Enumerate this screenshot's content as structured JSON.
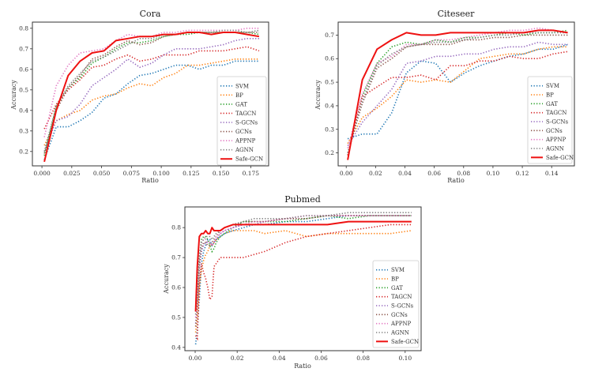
{
  "series_styles": [
    {
      "name": "SVM",
      "color": "#1f77b4",
      "style": "dotted"
    },
    {
      "name": "BP",
      "color": "#ff7f0e",
      "style": "dotted"
    },
    {
      "name": "GAT",
      "color": "#2ca02c",
      "style": "dotted"
    },
    {
      "name": "TAGCN",
      "color": "#d62728",
      "style": "dotted"
    },
    {
      "name": "S-GCNs",
      "color": "#9467bd",
      "style": "dotted"
    },
    {
      "name": "GCNs",
      "color": "#8c564b",
      "style": "dotted"
    },
    {
      "name": "APPNP",
      "color": "#e377c2",
      "style": "dotted"
    },
    {
      "name": "AGNN",
      "color": "#7f7f7f",
      "style": "dotted"
    },
    {
      "name": "Safe-GCN",
      "color": "#ee1111",
      "style": "solid"
    }
  ],
  "chart_data": [
    {
      "id": "cora",
      "type": "line",
      "title": "Cora",
      "xlabel": "Ratio",
      "ylabel": "Accuracy",
      "xlim": [
        -0.008,
        0.19
      ],
      "ylim": [
        0.13,
        0.83
      ],
      "xticks": [
        0.0,
        0.025,
        0.05,
        0.075,
        0.1,
        0.125,
        0.15,
        0.175
      ],
      "xtick_labels": [
        "0.000",
        "0.025",
        "0.050",
        "0.075",
        "0.100",
        "0.125",
        "0.150",
        "0.175"
      ],
      "yticks": [
        0.2,
        0.3,
        0.4,
        0.5,
        0.6,
        0.7,
        0.8
      ],
      "ytick_labels": [
        "0.2",
        "0.3",
        "0.4",
        "0.5",
        "0.6",
        "0.7",
        "0.8"
      ],
      "legend_position": "lower-right",
      "grid": false,
      "x": [
        0.002,
        0.012,
        0.022,
        0.032,
        0.042,
        0.052,
        0.062,
        0.072,
        0.082,
        0.092,
        0.102,
        0.112,
        0.122,
        0.132,
        0.142,
        0.152,
        0.162,
        0.172,
        0.182
      ],
      "series": [
        {
          "name": "SVM",
          "values": [
            0.16,
            0.32,
            0.32,
            0.35,
            0.39,
            0.46,
            0.48,
            0.53,
            0.57,
            0.58,
            0.6,
            0.62,
            0.62,
            0.6,
            0.62,
            0.62,
            0.64,
            0.64,
            0.64
          ]
        },
        {
          "name": "BP",
          "values": [
            0.23,
            0.35,
            0.38,
            0.4,
            0.45,
            0.47,
            0.48,
            0.51,
            0.53,
            0.52,
            0.56,
            0.58,
            0.62,
            0.62,
            0.63,
            0.64,
            0.65,
            0.65,
            0.65
          ]
        },
        {
          "name": "GAT",
          "values": [
            0.18,
            0.42,
            0.51,
            0.56,
            0.63,
            0.66,
            0.7,
            0.73,
            0.73,
            0.74,
            0.76,
            0.77,
            0.77,
            0.78,
            0.78,
            0.78,
            0.78,
            0.78,
            0.77
          ]
        },
        {
          "name": "TAGCN",
          "values": [
            0.31,
            0.43,
            0.5,
            0.55,
            0.61,
            0.62,
            0.65,
            0.67,
            0.64,
            0.65,
            0.67,
            0.67,
            0.67,
            0.69,
            0.69,
            0.69,
            0.7,
            0.71,
            0.69
          ]
        },
        {
          "name": "S-GCNs",
          "values": [
            0.2,
            0.35,
            0.37,
            0.43,
            0.52,
            0.56,
            0.6,
            0.65,
            0.61,
            0.63,
            0.67,
            0.7,
            0.7,
            0.7,
            0.71,
            0.72,
            0.74,
            0.75,
            0.75
          ]
        },
        {
          "name": "GCNs",
          "values": [
            0.19,
            0.4,
            0.51,
            0.57,
            0.65,
            0.67,
            0.71,
            0.74,
            0.72,
            0.73,
            0.76,
            0.77,
            0.78,
            0.78,
            0.78,
            0.78,
            0.78,
            0.78,
            0.78
          ]
        },
        {
          "name": "APPNP",
          "values": [
            0.27,
            0.52,
            0.62,
            0.68,
            0.69,
            0.7,
            0.74,
            0.77,
            0.76,
            0.76,
            0.78,
            0.78,
            0.79,
            0.79,
            0.79,
            0.79,
            0.79,
            0.8,
            0.8
          ]
        },
        {
          "name": "AGNN",
          "values": [
            0.2,
            0.42,
            0.52,
            0.58,
            0.64,
            0.66,
            0.69,
            0.72,
            0.75,
            0.75,
            0.77,
            0.77,
            0.78,
            0.78,
            0.78,
            0.79,
            0.79,
            0.78,
            0.79
          ]
        },
        {
          "name": "Safe-GCN",
          "values": [
            0.15,
            0.4,
            0.57,
            0.64,
            0.68,
            0.69,
            0.74,
            0.75,
            0.76,
            0.76,
            0.77,
            0.77,
            0.78,
            0.78,
            0.77,
            0.78,
            0.78,
            0.77,
            0.76
          ]
        }
      ]
    },
    {
      "id": "citeseer",
      "type": "line",
      "title": "Citeseer",
      "xlabel": "Ratio",
      "ylabel": "Accuracy",
      "xlim": [
        -0.0055,
        0.1555
      ],
      "ylim": [
        0.145,
        0.755
      ],
      "xticks": [
        0.0,
        0.02,
        0.04,
        0.06,
        0.08,
        0.1,
        0.12,
        0.14
      ],
      "xtick_labels": [
        "0.00",
        "0.02",
        "0.04",
        "0.06",
        "0.08",
        "0.10",
        "0.12",
        "0.14"
      ],
      "yticks": [
        0.2,
        0.3,
        0.4,
        0.5,
        0.6,
        0.7
      ],
      "ytick_labels": [
        "0.2",
        "0.3",
        "0.4",
        "0.5",
        "0.6",
        "0.7"
      ],
      "legend_position": "lower-right",
      "grid": false,
      "x": [
        0.001,
        0.011,
        0.021,
        0.031,
        0.041,
        0.051,
        0.061,
        0.071,
        0.081,
        0.091,
        0.101,
        0.111,
        0.121,
        0.131,
        0.141,
        0.151
      ],
      "series": [
        {
          "name": "SVM",
          "values": [
            0.26,
            0.28,
            0.28,
            0.37,
            0.54,
            0.59,
            0.58,
            0.5,
            0.54,
            0.57,
            0.59,
            0.61,
            0.62,
            0.64,
            0.64,
            0.66
          ]
        },
        {
          "name": "BP",
          "values": [
            0.24,
            0.35,
            0.39,
            0.44,
            0.51,
            0.5,
            0.51,
            0.5,
            0.55,
            0.6,
            0.61,
            0.62,
            0.62,
            0.64,
            0.65,
            0.65
          ]
        },
        {
          "name": "GAT",
          "values": [
            0.19,
            0.44,
            0.58,
            0.65,
            0.67,
            0.66,
            0.68,
            0.67,
            0.69,
            0.69,
            0.7,
            0.71,
            0.7,
            0.71,
            0.71,
            0.72
          ]
        },
        {
          "name": "TAGCN",
          "values": [
            0.19,
            0.44,
            0.48,
            0.52,
            0.52,
            0.53,
            0.51,
            0.57,
            0.57,
            0.59,
            0.59,
            0.61,
            0.6,
            0.6,
            0.62,
            0.63
          ]
        },
        {
          "name": "S-GCNs",
          "values": [
            0.23,
            0.33,
            0.4,
            0.47,
            0.58,
            0.59,
            0.61,
            0.61,
            0.62,
            0.62,
            0.64,
            0.65,
            0.65,
            0.67,
            0.66,
            0.66
          ]
        },
        {
          "name": "GCNs",
          "values": [
            0.2,
            0.41,
            0.56,
            0.6,
            0.65,
            0.66,
            0.66,
            0.66,
            0.68,
            0.68,
            0.69,
            0.69,
            0.7,
            0.7,
            0.7,
            0.7
          ]
        },
        {
          "name": "APPNP",
          "values": [
            0.22,
            0.45,
            0.58,
            0.61,
            0.66,
            0.66,
            0.68,
            0.68,
            0.69,
            0.7,
            0.71,
            0.72,
            0.72,
            0.73,
            0.72,
            0.71
          ]
        },
        {
          "name": "AGNN",
          "values": [
            0.2,
            0.42,
            0.57,
            0.62,
            0.65,
            0.66,
            0.67,
            0.67,
            0.68,
            0.69,
            0.7,
            0.7,
            0.71,
            0.71,
            0.71,
            0.71
          ]
        },
        {
          "name": "Safe-GCN",
          "values": [
            0.17,
            0.51,
            0.64,
            0.68,
            0.71,
            0.7,
            0.7,
            0.71,
            0.71,
            0.71,
            0.71,
            0.71,
            0.71,
            0.72,
            0.72,
            0.71
          ]
        }
      ]
    },
    {
      "id": "pubmed",
      "type": "line",
      "title": "Pubmed",
      "xlabel": "Ratio",
      "ylabel": "Accuracy",
      "xlim": [
        -0.0049,
        0.1076
      ],
      "ylim": [
        0.389,
        0.869
      ],
      "xticks": [
        0.0,
        0.02,
        0.04,
        0.06,
        0.08,
        0.1
      ],
      "xtick_labels": [
        "0.00",
        "0.02",
        "0.04",
        "0.06",
        "0.08",
        "0.10"
      ],
      "yticks": [
        0.4,
        0.5,
        0.6,
        0.7,
        0.8
      ],
      "ytick_labels": [
        "0.4",
        "0.5",
        "0.6",
        "0.7",
        "0.8"
      ],
      "legend_position": "lower-right",
      "grid": false,
      "x": [
        0.0002,
        0.001,
        0.002,
        0.003,
        0.004,
        0.005,
        0.006,
        0.007,
        0.008,
        0.009,
        0.01,
        0.012,
        0.014,
        0.018,
        0.023,
        0.028,
        0.033,
        0.043,
        0.053,
        0.063,
        0.073,
        0.083,
        0.093,
        0.103
      ],
      "series": [
        {
          "name": "SVM",
          "values": [
            0.41,
            0.46,
            0.56,
            0.68,
            0.72,
            0.74,
            0.76,
            0.76,
            0.74,
            0.75,
            0.76,
            0.77,
            0.78,
            0.79,
            0.8,
            0.81,
            0.81,
            0.82,
            0.82,
            0.83,
            0.84,
            0.84,
            0.84,
            0.84
          ]
        },
        {
          "name": "BP",
          "values": [
            0.45,
            0.5,
            0.6,
            0.66,
            0.69,
            0.71,
            0.72,
            0.74,
            0.74,
            0.75,
            0.76,
            0.77,
            0.78,
            0.79,
            0.79,
            0.79,
            0.78,
            0.79,
            0.77,
            0.78,
            0.78,
            0.78,
            0.78,
            0.79
          ]
        },
        {
          "name": "GAT",
          "values": [
            0.52,
            0.56,
            0.7,
            0.76,
            0.77,
            0.77,
            0.76,
            0.74,
            0.72,
            0.73,
            0.75,
            0.77,
            0.78,
            0.8,
            0.82,
            0.82,
            0.82,
            0.82,
            0.83,
            0.84,
            0.83,
            0.84,
            0.84,
            0.84
          ]
        },
        {
          "name": "TAGCN",
          "values": [
            0.44,
            0.43,
            0.62,
            0.68,
            0.65,
            0.63,
            0.6,
            0.56,
            0.57,
            0.67,
            0.68,
            0.7,
            0.7,
            0.7,
            0.7,
            0.71,
            0.72,
            0.75,
            0.77,
            0.78,
            0.79,
            0.8,
            0.81,
            0.81
          ]
        },
        {
          "name": "S-GCNs",
          "values": [
            0.48,
            0.53,
            0.66,
            0.72,
            0.74,
            0.75,
            0.75,
            0.75,
            0.74,
            0.75,
            0.76,
            0.78,
            0.79,
            0.8,
            0.81,
            0.81,
            0.82,
            0.83,
            0.83,
            0.84,
            0.84,
            0.84,
            0.84,
            0.84
          ]
        },
        {
          "name": "GCNs",
          "values": [
            0.47,
            0.54,
            0.68,
            0.73,
            0.75,
            0.75,
            0.74,
            0.74,
            0.75,
            0.76,
            0.77,
            0.79,
            0.8,
            0.81,
            0.82,
            0.82,
            0.82,
            0.83,
            0.83,
            0.84,
            0.84,
            0.84,
            0.84,
            0.84
          ]
        },
        {
          "name": "APPNP",
          "values": [
            0.5,
            0.56,
            0.7,
            0.75,
            0.76,
            0.76,
            0.75,
            0.75,
            0.74,
            0.75,
            0.77,
            0.78,
            0.79,
            0.8,
            0.81,
            0.82,
            0.82,
            0.83,
            0.84,
            0.84,
            0.84,
            0.84,
            0.84,
            0.84
          ]
        },
        {
          "name": "AGNN",
          "values": [
            0.51,
            0.58,
            0.71,
            0.75,
            0.76,
            0.77,
            0.77,
            0.77,
            0.76,
            0.77,
            0.78,
            0.79,
            0.8,
            0.81,
            0.82,
            0.83,
            0.83,
            0.83,
            0.84,
            0.84,
            0.85,
            0.85,
            0.85,
            0.85
          ]
        },
        {
          "name": "Safe-GCN",
          "values": [
            0.52,
            0.67,
            0.77,
            0.78,
            0.78,
            0.79,
            0.78,
            0.78,
            0.8,
            0.79,
            0.79,
            0.79,
            0.8,
            0.81,
            0.81,
            0.81,
            0.81,
            0.81,
            0.81,
            0.81,
            0.82,
            0.82,
            0.82,
            0.82
          ]
        }
      ]
    }
  ]
}
